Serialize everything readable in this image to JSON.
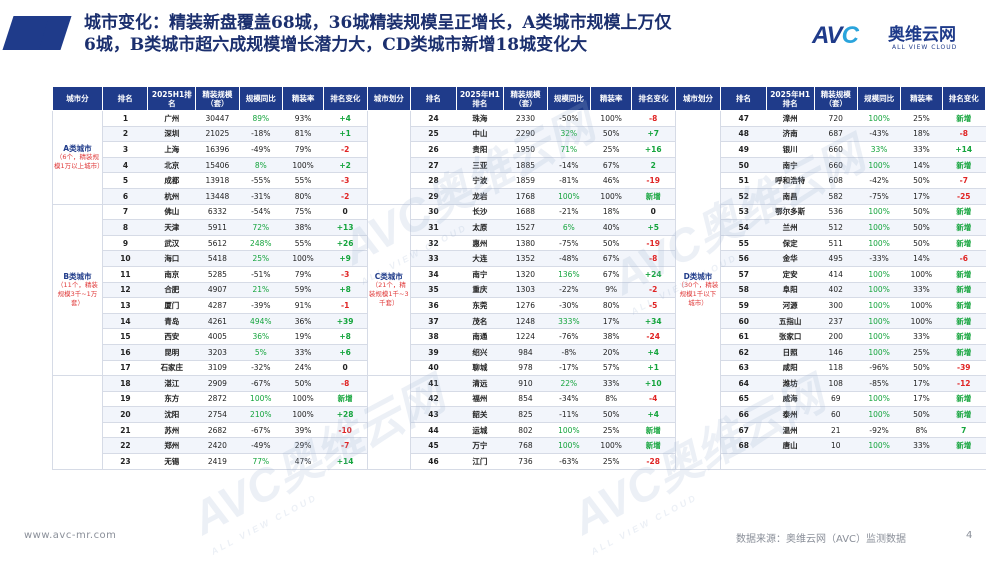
{
  "header": {
    "title_line1": "城市变化：精装新盘覆盖68城，36城精装规模呈正增长，A类城市规模上万仅",
    "title_line2": "6城，B类城市超六成规模增长潜力大，CD类城市新增18城变化大"
  },
  "logo": {
    "mark_a": "AV",
    "mark_b": "C",
    "brand_cn": "奥维云网",
    "brand_en": "ALL VIEW CLOUD"
  },
  "table": {
    "headers": {
      "group": "城市分",
      "rank": "排名",
      "city": "2025H1排名",
      "scale": "精装规模（套）",
      "yoy": "规模同比",
      "rate": "精装率",
      "change": "排名变化",
      "group2": "城市划分",
      "city2": "2025年H1排名",
      "group3": "城市划分",
      "city3": "2025年H1排名"
    },
    "groups": {
      "a": {
        "name": "A类城市",
        "note": "（6个，精装规模1万以上城市）"
      },
      "b": {
        "name": "B类城市",
        "note": "（11个，精装规模3千~1万套）"
      },
      "c": {
        "name": "C类城市",
        "note": "（21个，精装规模1千~3千套）"
      },
      "d": {
        "name": "D类城市",
        "note": "（30个，精装规模1千以下城市）"
      }
    },
    "col1": [
      {
        "rank": "1",
        "city": "广州",
        "scale": "30447",
        "yoy": "89%",
        "rate": "93%",
        "change": "+4"
      },
      {
        "rank": "2",
        "city": "深圳",
        "scale": "21025",
        "yoy": "-18%",
        "rate": "81%",
        "change": "+1"
      },
      {
        "rank": "3",
        "city": "上海",
        "scale": "16396",
        "yoy": "-49%",
        "rate": "79%",
        "change": "-2"
      },
      {
        "rank": "4",
        "city": "北京",
        "scale": "15406",
        "yoy": "8%",
        "rate": "100%",
        "change": "+2"
      },
      {
        "rank": "5",
        "city": "成都",
        "scale": "13918",
        "yoy": "-55%",
        "rate": "55%",
        "change": "-3"
      },
      {
        "rank": "6",
        "city": "杭州",
        "scale": "13448",
        "yoy": "-31%",
        "rate": "80%",
        "change": "-2"
      },
      {
        "rank": "7",
        "city": "佛山",
        "scale": "6332",
        "yoy": "-54%",
        "rate": "75%",
        "change": "0"
      },
      {
        "rank": "8",
        "city": "天津",
        "scale": "5911",
        "yoy": "72%",
        "rate": "38%",
        "change": "+13"
      },
      {
        "rank": "9",
        "city": "武汉",
        "scale": "5612",
        "yoy": "248%",
        "rate": "55%",
        "change": "+26"
      },
      {
        "rank": "10",
        "city": "海口",
        "scale": "5418",
        "yoy": "25%",
        "rate": "100%",
        "change": "+9"
      },
      {
        "rank": "11",
        "city": "南京",
        "scale": "5285",
        "yoy": "-51%",
        "rate": "79%",
        "change": "-3"
      },
      {
        "rank": "12",
        "city": "合肥",
        "scale": "4907",
        "yoy": "21%",
        "rate": "59%",
        "change": "+8"
      },
      {
        "rank": "13",
        "city": "厦门",
        "scale": "4287",
        "yoy": "-39%",
        "rate": "91%",
        "change": "-1"
      },
      {
        "rank": "14",
        "city": "青岛",
        "scale": "4261",
        "yoy": "494%",
        "rate": "36%",
        "change": "+39"
      },
      {
        "rank": "15",
        "city": "西安",
        "scale": "4005",
        "yoy": "36%",
        "rate": "19%",
        "change": "+8"
      },
      {
        "rank": "16",
        "city": "昆明",
        "scale": "3203",
        "yoy": "5%",
        "rate": "33%",
        "change": "+6"
      },
      {
        "rank": "17",
        "city": "石家庄",
        "scale": "3109",
        "yoy": "-32%",
        "rate": "24%",
        "change": "0"
      },
      {
        "rank": "18",
        "city": "湛江",
        "scale": "2909",
        "yoy": "-67%",
        "rate": "50%",
        "change": "-8"
      },
      {
        "rank": "19",
        "city": "东方",
        "scale": "2872",
        "yoy": "100%",
        "rate": "100%",
        "change": "新增"
      },
      {
        "rank": "20",
        "city": "沈阳",
        "scale": "2754",
        "yoy": "210%",
        "rate": "100%",
        "change": "+28"
      },
      {
        "rank": "21",
        "city": "苏州",
        "scale": "2682",
        "yoy": "-67%",
        "rate": "39%",
        "change": "-10"
      },
      {
        "rank": "22",
        "city": "郑州",
        "scale": "2420",
        "yoy": "-49%",
        "rate": "29%",
        "change": "-7"
      },
      {
        "rank": "23",
        "city": "无锡",
        "scale": "2419",
        "yoy": "77%",
        "rate": "47%",
        "change": "+14"
      }
    ],
    "col2": [
      {
        "rank": "24",
        "city": "珠海",
        "scale": "2330",
        "yoy": "-50%",
        "rate": "100%",
        "change": "-8"
      },
      {
        "rank": "25",
        "city": "中山",
        "scale": "2290",
        "yoy": "32%",
        "rate": "50%",
        "change": "+7"
      },
      {
        "rank": "26",
        "city": "贵阳",
        "scale": "1950",
        "yoy": "71%",
        "rate": "25%",
        "change": "+16"
      },
      {
        "rank": "27",
        "city": "三亚",
        "scale": "1885",
        "yoy": "-14%",
        "rate": "67%",
        "change": "2"
      },
      {
        "rank": "28",
        "city": "宁波",
        "scale": "1859",
        "yoy": "-81%",
        "rate": "46%",
        "change": "-19"
      },
      {
        "rank": "29",
        "city": "龙岩",
        "scale": "1768",
        "yoy": "100%",
        "rate": "100%",
        "change": "新增"
      },
      {
        "rank": "30",
        "city": "长沙",
        "scale": "1688",
        "yoy": "-21%",
        "rate": "18%",
        "change": "0"
      },
      {
        "rank": "31",
        "city": "太原",
        "scale": "1527",
        "yoy": "6%",
        "rate": "40%",
        "change": "+5"
      },
      {
        "rank": "32",
        "city": "惠州",
        "scale": "1380",
        "yoy": "-75%",
        "rate": "50%",
        "change": "-19"
      },
      {
        "rank": "33",
        "city": "大连",
        "scale": "1352",
        "yoy": "-48%",
        "rate": "67%",
        "change": "-8"
      },
      {
        "rank": "34",
        "city": "南宁",
        "scale": "1320",
        "yoy": "136%",
        "rate": "67%",
        "change": "+24"
      },
      {
        "rank": "35",
        "city": "重庆",
        "scale": "1303",
        "yoy": "-22%",
        "rate": "9%",
        "change": "-2"
      },
      {
        "rank": "36",
        "city": "东莞",
        "scale": "1276",
        "yoy": "-30%",
        "rate": "80%",
        "change": "-5"
      },
      {
        "rank": "37",
        "city": "茂名",
        "scale": "1248",
        "yoy": "333%",
        "rate": "17%",
        "change": "+34"
      },
      {
        "rank": "38",
        "city": "南通",
        "scale": "1224",
        "yoy": "-76%",
        "rate": "38%",
        "change": "-24"
      },
      {
        "rank": "39",
        "city": "绍兴",
        "scale": "984",
        "yoy": "-8%",
        "rate": "20%",
        "change": "+4"
      },
      {
        "rank": "40",
        "city": "聊城",
        "scale": "978",
        "yoy": "-17%",
        "rate": "57%",
        "change": "+1"
      },
      {
        "rank": "41",
        "city": "清远",
        "scale": "910",
        "yoy": "22%",
        "rate": "33%",
        "change": "+10"
      },
      {
        "rank": "42",
        "city": "福州",
        "scale": "854",
        "yoy": "-34%",
        "rate": "8%",
        "change": "-4"
      },
      {
        "rank": "43",
        "city": "韶关",
        "scale": "825",
        "yoy": "-11%",
        "rate": "50%",
        "change": "+4"
      },
      {
        "rank": "44",
        "city": "运城",
        "scale": "802",
        "yoy": "100%",
        "rate": "25%",
        "change": "新增"
      },
      {
        "rank": "45",
        "city": "万宁",
        "scale": "768",
        "yoy": "100%",
        "rate": "100%",
        "change": "新增"
      },
      {
        "rank": "46",
        "city": "江门",
        "scale": "736",
        "yoy": "-63%",
        "rate": "25%",
        "change": "-28"
      }
    ],
    "col3": [
      {
        "rank": "47",
        "city": "漳州",
        "scale": "720",
        "yoy": "100%",
        "rate": "25%",
        "change": "新增"
      },
      {
        "rank": "48",
        "city": "济南",
        "scale": "687",
        "yoy": "-43%",
        "rate": "18%",
        "change": "-8"
      },
      {
        "rank": "49",
        "city": "银川",
        "scale": "660",
        "yoy": "33%",
        "rate": "33%",
        "change": "+14"
      },
      {
        "rank": "50",
        "city": "南宁",
        "scale": "660",
        "yoy": "100%",
        "rate": "14%",
        "change": "新增"
      },
      {
        "rank": "51",
        "city": "呼和浩特",
        "scale": "608",
        "yoy": "-42%",
        "rate": "50%",
        "change": "-7"
      },
      {
        "rank": "52",
        "city": "南昌",
        "scale": "582",
        "yoy": "-75%",
        "rate": "17%",
        "change": "-25"
      },
      {
        "rank": "53",
        "city": "鄂尔多斯",
        "scale": "536",
        "yoy": "100%",
        "rate": "50%",
        "change": "新增"
      },
      {
        "rank": "54",
        "city": "兰州",
        "scale": "512",
        "yoy": "100%",
        "rate": "50%",
        "change": "新增"
      },
      {
        "rank": "55",
        "city": "保定",
        "scale": "511",
        "yoy": "100%",
        "rate": "50%",
        "change": "新增"
      },
      {
        "rank": "56",
        "city": "金华",
        "scale": "495",
        "yoy": "-33%",
        "rate": "14%",
        "change": "-6"
      },
      {
        "rank": "57",
        "city": "定安",
        "scale": "414",
        "yoy": "100%",
        "rate": "100%",
        "change": "新增"
      },
      {
        "rank": "58",
        "city": "阜阳",
        "scale": "402",
        "yoy": "100%",
        "rate": "33%",
        "change": "新增"
      },
      {
        "rank": "59",
        "city": "河源",
        "scale": "300",
        "yoy": "100%",
        "rate": "100%",
        "change": "新增"
      },
      {
        "rank": "60",
        "city": "五指山",
        "scale": "237",
        "yoy": "100%",
        "rate": "100%",
        "change": "新增"
      },
      {
        "rank": "61",
        "city": "张家口",
        "scale": "200",
        "yoy": "100%",
        "rate": "33%",
        "change": "新增"
      },
      {
        "rank": "62",
        "city": "日照",
        "scale": "146",
        "yoy": "100%",
        "rate": "25%",
        "change": "新增"
      },
      {
        "rank": "63",
        "city": "咸阳",
        "scale": "118",
        "yoy": "-96%",
        "rate": "50%",
        "change": "-39"
      },
      {
        "rank": "64",
        "city": "潍坊",
        "scale": "108",
        "yoy": "-85%",
        "rate": "17%",
        "change": "-12"
      },
      {
        "rank": "65",
        "city": "威海",
        "scale": "69",
        "yoy": "100%",
        "rate": "17%",
        "change": "新增"
      },
      {
        "rank": "66",
        "city": "泰州",
        "scale": "60",
        "yoy": "100%",
        "rate": "50%",
        "change": "新增"
      },
      {
        "rank": "67",
        "city": "温州",
        "scale": "21",
        "yoy": "-92%",
        "rate": "8%",
        "change": "7"
      },
      {
        "rank": "68",
        "city": "唐山",
        "scale": "10",
        "yoy": "100%",
        "rate": "33%",
        "change": "新增"
      }
    ]
  },
  "watermark": {
    "main": "AVC奥维云网",
    "sub": "ALL VIEW CLOUD"
  },
  "footer": {
    "url": "www.avc-mr.com",
    "source": "数据来源：奥维云网（AVC）监测数据",
    "page": "4"
  },
  "colors": {
    "primary": "#1f3b8a",
    "positive": "#14a43c",
    "negative": "#e02424"
  }
}
